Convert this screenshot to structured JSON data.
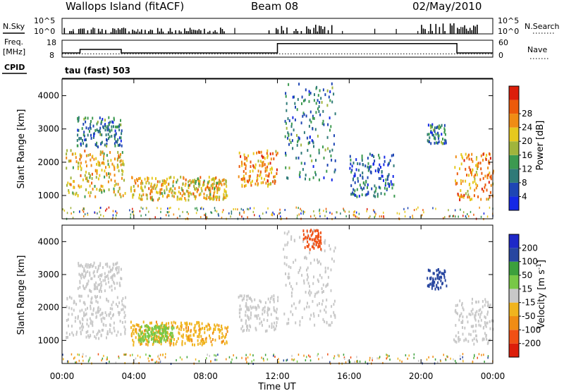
{
  "header": {
    "station": "Wallops Island (fitACF)",
    "beam": "Beam 08",
    "date": "02/May/2010"
  },
  "panel_labels": {
    "nsky": "N.Sky",
    "freq_line1": "Freq.",
    "freq_line2": "[MHz]",
    "cpid": "CPID",
    "nsearch": "N.Search",
    "nave": "Nave",
    "cpid_text": "tau (fast) 503"
  },
  "noise_axis": {
    "left_ticks": [
      "10^5",
      "10^0"
    ],
    "right_ticks": [
      "10^5",
      "10^0"
    ]
  },
  "freq_axis": {
    "left_ticks": [
      "18",
      "8"
    ],
    "right_ticks": [
      "60",
      "0"
    ]
  },
  "colors": {
    "power": [
      "#1428e6",
      "#1e46b4",
      "#2f7a78",
      "#3c9a50",
      "#a0b43c",
      "#e6c81e",
      "#f08c14",
      "#ec5a0a",
      "#dc1e0a"
    ],
    "velocity": [
      "#dc1e0a",
      "#f05014",
      "#f08c14",
      "#f0b41e",
      "#c8c8c8",
      "#78c846",
      "#3ca03c",
      "#2846a0",
      "#1e28c8"
    ]
  },
  "chart_data": [
    {
      "type": "heatmap",
      "quantity": "Power",
      "ylabel": "Slant Range [km]",
      "yticks": [
        "1000",
        "2000",
        "3000",
        "4000"
      ],
      "ylim": [
        300,
        4500
      ],
      "xlim": [
        0,
        24
      ],
      "colorbar": {
        "label": "Power [dB]",
        "ticks": [
          "4",
          "8",
          "12",
          "16",
          "20",
          "24",
          "28"
        ],
        "range": [
          0,
          32
        ]
      },
      "echo_regions": [
        {
          "t_start": 0.2,
          "t_end": 3.5,
          "range_start": 1000,
          "range_end": 2400,
          "level": 20
        },
        {
          "t_start": 0.8,
          "t_end": 3.3,
          "range_start": 2500,
          "range_end": 3400,
          "level": 8
        },
        {
          "t_start": 3.8,
          "t_end": 9.2,
          "range_start": 900,
          "range_end": 1600,
          "level": 20
        },
        {
          "t_start": 9.8,
          "t_end": 12.0,
          "range_start": 1300,
          "range_end": 2400,
          "level": 24
        },
        {
          "t_start": 12.3,
          "t_end": 15.2,
          "range_start": 1500,
          "range_end": 4400,
          "level": 8
        },
        {
          "t_start": 16.0,
          "t_end": 18.5,
          "range_start": 1000,
          "range_end": 2300,
          "level": 6
        },
        {
          "t_start": 20.3,
          "t_end": 21.4,
          "range_start": 2600,
          "range_end": 3200,
          "level": 8
        },
        {
          "t_start": 21.8,
          "t_end": 24.0,
          "range_start": 900,
          "range_end": 2300,
          "level": 24
        }
      ]
    },
    {
      "type": "heatmap",
      "quantity": "Velocity",
      "ylabel": "Slant Range [km]",
      "yticks": [
        "1000",
        "2000",
        "3000",
        "4000"
      ],
      "ylim": [
        300,
        4500
      ],
      "xlim": [
        0,
        24
      ],
      "xticks": [
        "00:00",
        "04:00",
        "08:00",
        "12:00",
        "16:00",
        "20:00",
        "00:00"
      ],
      "xlabel": "Time UT",
      "colorbar": {
        "label": "Velocity [m s^-1]",
        "ticks": [
          "200",
          "100",
          "50",
          "15",
          "-15",
          "-50",
          "-100",
          "-200"
        ]
      },
      "echo_regions": [
        {
          "t_start": 0.2,
          "t_end": 3.5,
          "range_start": 1100,
          "range_end": 2400,
          "velocity": 0
        },
        {
          "t_start": 0.8,
          "t_end": 3.3,
          "range_start": 2500,
          "range_end": 3400,
          "velocity": 0
        },
        {
          "t_start": 3.8,
          "t_end": 9.2,
          "range_start": 900,
          "range_end": 1600,
          "velocity": -40
        },
        {
          "t_start": 4.2,
          "t_end": 6.2,
          "range_start": 1000,
          "range_end": 1500,
          "velocity": 30
        },
        {
          "t_start": 9.8,
          "t_end": 12.0,
          "range_start": 1300,
          "range_end": 2400,
          "velocity": 0
        },
        {
          "t_start": 12.3,
          "t_end": 15.2,
          "range_start": 1500,
          "range_end": 4400,
          "velocity": 0
        },
        {
          "t_start": 13.4,
          "t_end": 14.4,
          "range_start": 3800,
          "range_end": 4400,
          "velocity": -150
        },
        {
          "t_start": 20.3,
          "t_end": 21.4,
          "range_start": 2600,
          "range_end": 3200,
          "velocity": 150
        },
        {
          "t_start": 21.8,
          "t_end": 24.0,
          "range_start": 900,
          "range_end": 2300,
          "velocity": 0
        }
      ]
    },
    {
      "type": "area",
      "quantity": "N.Sky noise",
      "bursts": [
        {
          "t_start": 0.0,
          "t_end": 9.0,
          "level": 0.35
        },
        {
          "t_start": 11.5,
          "t_end": 15.0,
          "level": 0.5
        },
        {
          "t_start": 20.0,
          "t_end": 23.4,
          "level": 0.6
        }
      ]
    },
    {
      "type": "line",
      "quantity": "Freq. [MHz]",
      "x": [
        0,
        1.0,
        1.0,
        3.3,
        3.3,
        12.0,
        12.0,
        22.0,
        22.0,
        24.0
      ],
      "y": [
        10.5,
        10.5,
        12.6,
        12.6,
        10.5,
        10.5,
        16.0,
        16.0,
        10.5,
        10.5
      ],
      "nave_dotted_level": 10.0
    }
  ]
}
